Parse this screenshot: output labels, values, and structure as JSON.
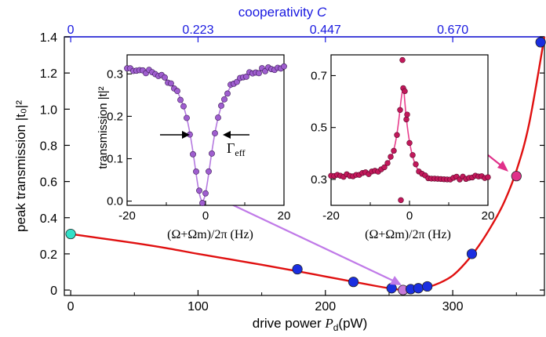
{
  "chart_data": [
    {
      "type": "scatter",
      "xlabel": "drive power",
      "xlabel_symbol": "P",
      "xlabel_subscript": "d",
      "xlabel_unit": "(pW)",
      "ylabel": "peak transmission |t₀|²",
      "xlim": [
        -5,
        372
      ],
      "ylim": [
        -0.03,
        1.4
      ],
      "xticks": [
        "0",
        "100",
        "200",
        "300"
      ],
      "xtick_values": [
        0,
        100,
        200,
        300
      ],
      "yticks": [
        "0",
        "0.2",
        "0.4",
        "0.6",
        "0.8",
        "1.0",
        "1.2",
        "1.4"
      ],
      "ytick_values": [
        0,
        0.2,
        0.4,
        0.6,
        0.8,
        1.0,
        1.2,
        1.4
      ],
      "top_axis": {
        "label": "cooperativity",
        "symbol": "C",
        "ticks": [
          "0",
          "0.223",
          "0.447",
          "0.670"
        ],
        "tick_positions_x": [
          0,
          100,
          200,
          300
        ],
        "color": "#1818e0"
      },
      "points": [
        {
          "x": 0,
          "y": 0.31,
          "color": "#33e0c8"
        },
        {
          "x": 178,
          "y": 0.115,
          "color": "#1a2ee0"
        },
        {
          "x": 222,
          "y": 0.045,
          "color": "#1a2ee0"
        },
        {
          "x": 252,
          "y": 0.01,
          "color": "#1a2ee0"
        },
        {
          "x": 261,
          "y": 0.0,
          "color": "#c87ad8"
        },
        {
          "x": 267,
          "y": 0.005,
          "color": "#1a2ee0"
        },
        {
          "x": 273,
          "y": 0.01,
          "color": "#1a2ee0"
        },
        {
          "x": 280,
          "y": 0.02,
          "color": "#1a2ee0"
        },
        {
          "x": 315,
          "y": 0.2,
          "color": "#1a2ee0"
        },
        {
          "x": 350,
          "y": 0.63,
          "color": "#e0308a"
        },
        {
          "x": 369,
          "y": 1.37,
          "color": "#1a2ee0"
        }
      ],
      "fit_curve": {
        "x": [
          0,
          25,
          50,
          75,
          100,
          125,
          150,
          175,
          200,
          225,
          240,
          250,
          258,
          264,
          270,
          280,
          290,
          300,
          310,
          320,
          330,
          340,
          350,
          360,
          372
        ],
        "y": [
          0.31,
          0.285,
          0.26,
          0.232,
          0.2,
          0.17,
          0.14,
          0.108,
          0.075,
          0.042,
          0.022,
          0.01,
          0.002,
          0.0,
          0.003,
          0.015,
          0.04,
          0.08,
          0.15,
          0.24,
          0.35,
          0.48,
          0.66,
          0.92,
          1.4
        ],
        "color": "#e01010"
      }
    },
    {
      "type": "scatter",
      "inset": "left",
      "xlabel": "(Ω+Ωm)/2π (Hz)",
      "ylabel": "transmission |t|²",
      "xlim": [
        -20,
        20
      ],
      "ylim": [
        -0.01,
        0.345
      ],
      "xticks": [
        "-20",
        "0",
        "20"
      ],
      "xtick_values": [
        -20,
        0,
        20
      ],
      "yticks": [
        "0.0",
        "0.1",
        "0.2",
        "0.3"
      ],
      "ytick_values": [
        0,
        0.1,
        0.2,
        0.3
      ],
      "annotation": "Γeff",
      "point_color": "#9f5ecf",
      "line_color": "#b57ae0",
      "lorentz": {
        "baseline": 0.322,
        "dip": 0.322,
        "center": -0.8,
        "hwhm": 3.2
      }
    },
    {
      "type": "scatter",
      "inset": "right",
      "xlabel": "(Ω+Ωm)/2π (Hz)",
      "xlim": [
        -20,
        20
      ],
      "ylim": [
        0.2,
        0.78
      ],
      "xticks": [
        "-20",
        "0",
        "20"
      ],
      "xtick_values": [
        -20,
        0,
        20
      ],
      "yticks": [
        "0.3",
        "0.5",
        "0.7"
      ],
      "ytick_values": [
        0.3,
        0.5,
        0.7
      ],
      "point_color": "#c2185b",
      "line_color": "#e83e8c",
      "fano": {
        "baseline": 0.32,
        "peak": 0.66,
        "center": -1.5,
        "width": 1.6
      }
    }
  ]
}
